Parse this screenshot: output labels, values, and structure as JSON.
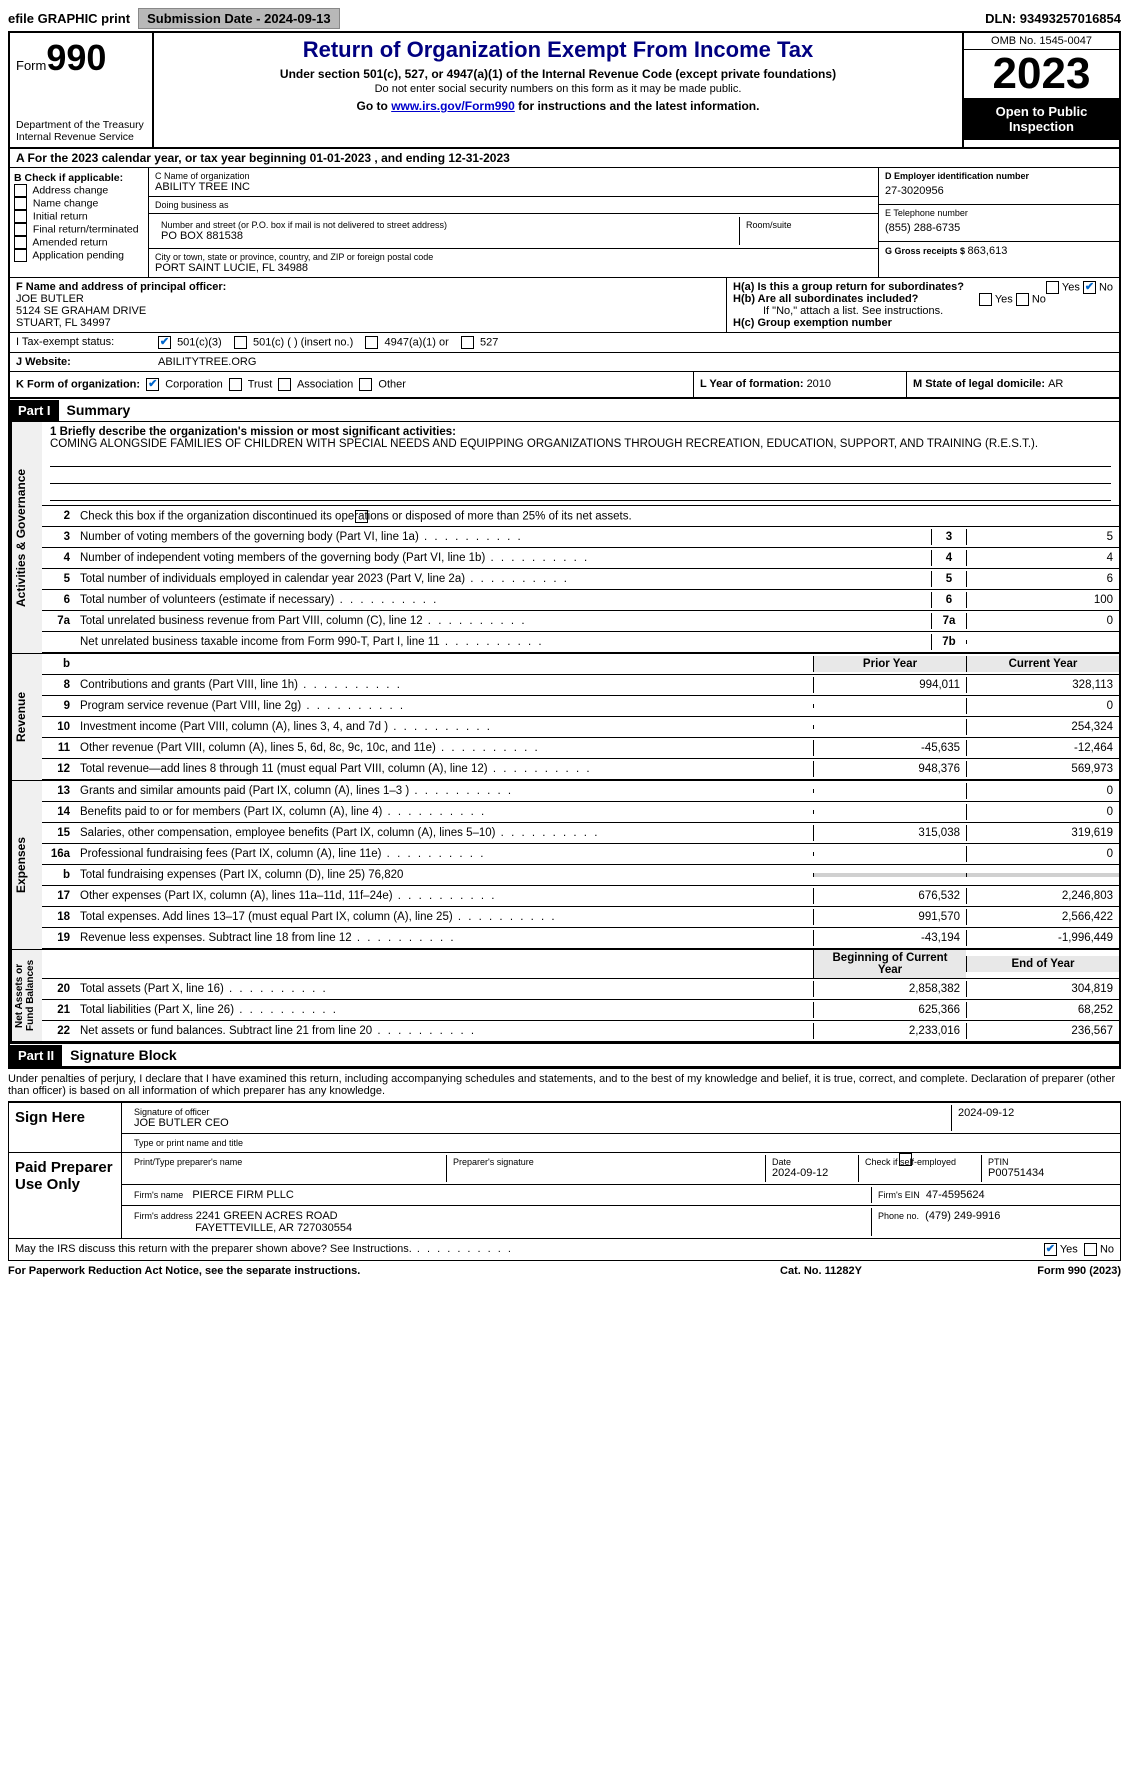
{
  "topbar": {
    "efile": "efile GRAPHIC print",
    "subdate_lbl": "Submission Date - ",
    "subdate": "2024-09-13",
    "dln_lbl": "DLN: ",
    "dln": "93493257016854"
  },
  "header": {
    "form_lbl": "Form",
    "form_num": "990",
    "dept": "Department of the Treasury\nInternal Revenue Service",
    "title": "Return of Organization Exempt From Income Tax",
    "sub": "Under section 501(c), 527, or 4947(a)(1) of the Internal Revenue Code (except private foundations)",
    "note": "Do not enter social security numbers on this form as it may be made public.",
    "goto_pre": "Go to ",
    "goto_link": "www.irs.gov/Form990",
    "goto_post": " for instructions and the latest information.",
    "omb": "OMB No. 1545-0047",
    "year": "2023",
    "inspection": "Open to Public Inspection"
  },
  "rowA": "A  For the 2023 calendar year, or tax year beginning ",
  "rowA_begin": "01-01-2023",
  "rowA_mid": "    , and ending ",
  "rowA_end": "12-31-2023",
  "colB": {
    "lbl": "B Check if applicable:",
    "items": [
      "Address change",
      "Name change",
      "Initial return",
      "Final return/terminated",
      "Amended return",
      "Application pending"
    ]
  },
  "colC": {
    "name_lbl": "C Name of organization",
    "name": "ABILITY TREE INC",
    "dba_lbl": "Doing business as",
    "dba": "",
    "addr_lbl": "Number and street (or P.O. box if mail is not delivered to street address)",
    "room_lbl": "Room/suite",
    "addr": "PO BOX 881538",
    "city_lbl": "City or town, state or province, country, and ZIP or foreign postal code",
    "city": "PORT SAINT LUCIE, FL  34988"
  },
  "colD": {
    "ein_lbl": "D Employer identification number",
    "ein": "27-3020956",
    "tel_lbl": "E Telephone number",
    "tel": "(855) 288-6735",
    "gross_lbl": "G Gross receipts $ ",
    "gross": "863,613"
  },
  "rowF": {
    "lbl": "F Name and address of principal officer:",
    "name": "JOE BUTLER",
    "addr1": "5124 SE GRAHAM DRIVE",
    "addr2": "STUART, FL  34997",
    "ha_lbl": "H(a)  Is this a group return for subordinates?",
    "ha_yes": "Yes",
    "ha_no": "No",
    "hb_lbl": "H(b)  Are all subordinates included?",
    "hb_yes": "Yes",
    "hb_no": "No",
    "hb_note": "If \"No,\" attach a list. See instructions.",
    "hc_lbl": "H(c)  Group exemption number"
  },
  "rowI": {
    "lbl": "I    Tax-exempt status:",
    "c3": "501(c)(3)",
    "c_other": "501(c) (  ) (insert no.)",
    "c4947": "4947(a)(1) or",
    "c527": "527"
  },
  "rowJ": {
    "lbl": "J    Website:",
    "val": "ABILITYTREE.ORG"
  },
  "rowK": {
    "lbl": "K Form of organization:",
    "corp": "Corporation",
    "trust": "Trust",
    "assoc": "Association",
    "other": "Other",
    "L_lbl": "L Year of formation: ",
    "L_val": "2010",
    "M_lbl": "M State of legal domicile: ",
    "M_val": "AR"
  },
  "partI": {
    "hdr": "Part I",
    "title": "Summary"
  },
  "summary": {
    "l1_lbl": "1   Briefly describe the organization's mission or most significant activities:",
    "l1_val": "COMING ALONGSIDE FAMILIES OF CHILDREN WITH SPECIAL NEEDS AND EQUIPPING ORGANIZATIONS THROUGH RECREATION, EDUCATION, SUPPORT, AND TRAINING (R.E.S.T.).",
    "l2": "Check this box          if the organization discontinued its operations or disposed of more than 25% of its net assets.",
    "rows_ag": [
      {
        "n": "3",
        "d": "Number of voting members of the governing body (Part VI, line 1a)",
        "box": "3",
        "v": "5"
      },
      {
        "n": "4",
        "d": "Number of independent voting members of the governing body (Part VI, line 1b)",
        "box": "4",
        "v": "4"
      },
      {
        "n": "5",
        "d": "Total number of individuals employed in calendar year 2023 (Part V, line 2a)",
        "box": "5",
        "v": "6"
      },
      {
        "n": "6",
        "d": "Total number of volunteers (estimate if necessary)",
        "box": "6",
        "v": "100"
      },
      {
        "n": "7a",
        "d": "Total unrelated business revenue from Part VIII, column (C), line 12",
        "box": "7a",
        "v": "0"
      },
      {
        "n": "",
        "d": "Net unrelated business taxable income from Form 990-T, Part I, line 11",
        "box": "7b",
        "v": ""
      }
    ],
    "hdr_prior": "Prior Year",
    "hdr_current": "Current Year",
    "rows_rev": [
      {
        "n": "8",
        "d": "Contributions and grants (Part VIII, line 1h)",
        "p": "994,011",
        "c": "328,113"
      },
      {
        "n": "9",
        "d": "Program service revenue (Part VIII, line 2g)",
        "p": "",
        "c": "0"
      },
      {
        "n": "10",
        "d": "Investment income (Part VIII, column (A), lines 3, 4, and 7d )",
        "p": "",
        "c": "254,324"
      },
      {
        "n": "11",
        "d": "Other revenue (Part VIII, column (A), lines 5, 6d, 8c, 9c, 10c, and 11e)",
        "p": "-45,635",
        "c": "-12,464"
      },
      {
        "n": "12",
        "d": "Total revenue—add lines 8 through 11 (must equal Part VIII, column (A), line 12)",
        "p": "948,376",
        "c": "569,973"
      }
    ],
    "rows_exp": [
      {
        "n": "13",
        "d": "Grants and similar amounts paid (Part IX, column (A), lines 1–3 )",
        "p": "",
        "c": "0"
      },
      {
        "n": "14",
        "d": "Benefits paid to or for members (Part IX, column (A), line 4)",
        "p": "",
        "c": "0"
      },
      {
        "n": "15",
        "d": "Salaries, other compensation, employee benefits (Part IX, column (A), lines 5–10)",
        "p": "315,038",
        "c": "319,619"
      },
      {
        "n": "16a",
        "d": "Professional fundraising fees (Part IX, column (A), line 11e)",
        "p": "",
        "c": "0"
      },
      {
        "n": "b",
        "d": "Total fundraising expenses (Part IX, column (D), line 25) 76,820",
        "p": "grey",
        "c": "grey"
      },
      {
        "n": "17",
        "d": "Other expenses (Part IX, column (A), lines 11a–11d, 11f–24e)",
        "p": "676,532",
        "c": "2,246,803"
      },
      {
        "n": "18",
        "d": "Total expenses. Add lines 13–17 (must equal Part IX, column (A), line 25)",
        "p": "991,570",
        "c": "2,566,422"
      },
      {
        "n": "19",
        "d": "Revenue less expenses. Subtract line 18 from line 12",
        "p": "-43,194",
        "c": "-1,996,449"
      }
    ],
    "hdr_boy": "Beginning of Current Year",
    "hdr_eoy": "End of Year",
    "rows_na": [
      {
        "n": "20",
        "d": "Total assets (Part X, line 16)",
        "p": "2,858,382",
        "c": "304,819"
      },
      {
        "n": "21",
        "d": "Total liabilities (Part X, line 26)",
        "p": "625,366",
        "c": "68,252"
      },
      {
        "n": "22",
        "d": "Net assets or fund balances. Subtract line 21 from line 20",
        "p": "2,233,016",
        "c": "236,567"
      }
    ]
  },
  "vtabs": {
    "ag": "Activities & Governance",
    "rev": "Revenue",
    "exp": "Expenses",
    "na": "Net Assets or\nFund Balances"
  },
  "partII": {
    "hdr": "Part II",
    "title": "Signature Block"
  },
  "sig": {
    "decl": "Under penalties of perjury, I declare that I have examined this return, including accompanying schedules and statements, and to the best of my knowledge and belief, it is true, correct, and complete. Declaration of preparer (other than officer) is based on all information of which preparer has any knowledge.",
    "sign_here": "Sign Here",
    "sig_officer_lbl": "Signature of officer",
    "sig_date": "2024-09-12",
    "officer_name": "JOE BUTLER CEO",
    "type_name_lbl": "Type or print name and title",
    "paid": "Paid Preparer Use Only",
    "prep_name_lbl": "Print/Type preparer's name",
    "prep_sig_lbl": "Preparer's signature",
    "date_lbl": "Date",
    "date_val": "2024-09-12",
    "check_lbl": "Check         if self-employed",
    "ptin_lbl": "PTIN",
    "ptin": "P00751434",
    "firm_name_lbl": "Firm's name",
    "firm_name": "PIERCE FIRM PLLC",
    "firm_ein_lbl": "Firm's EIN",
    "firm_ein": "47-4595624",
    "firm_addr_lbl": "Firm's address",
    "firm_addr1": "2241 GREEN ACRES ROAD",
    "firm_addr2": "FAYETTEVILLE, AR  727030554",
    "phone_lbl": "Phone no.",
    "phone": "(479) 249-9916",
    "discuss": "May the IRS discuss this return with the preparer shown above? See Instructions.",
    "yes": "Yes",
    "no": "No"
  },
  "footer": {
    "l": "For Paperwork Reduction Act Notice, see the separate instructions.",
    "m": "Cat. No. 11282Y",
    "r": "Form 990 (2023)"
  }
}
